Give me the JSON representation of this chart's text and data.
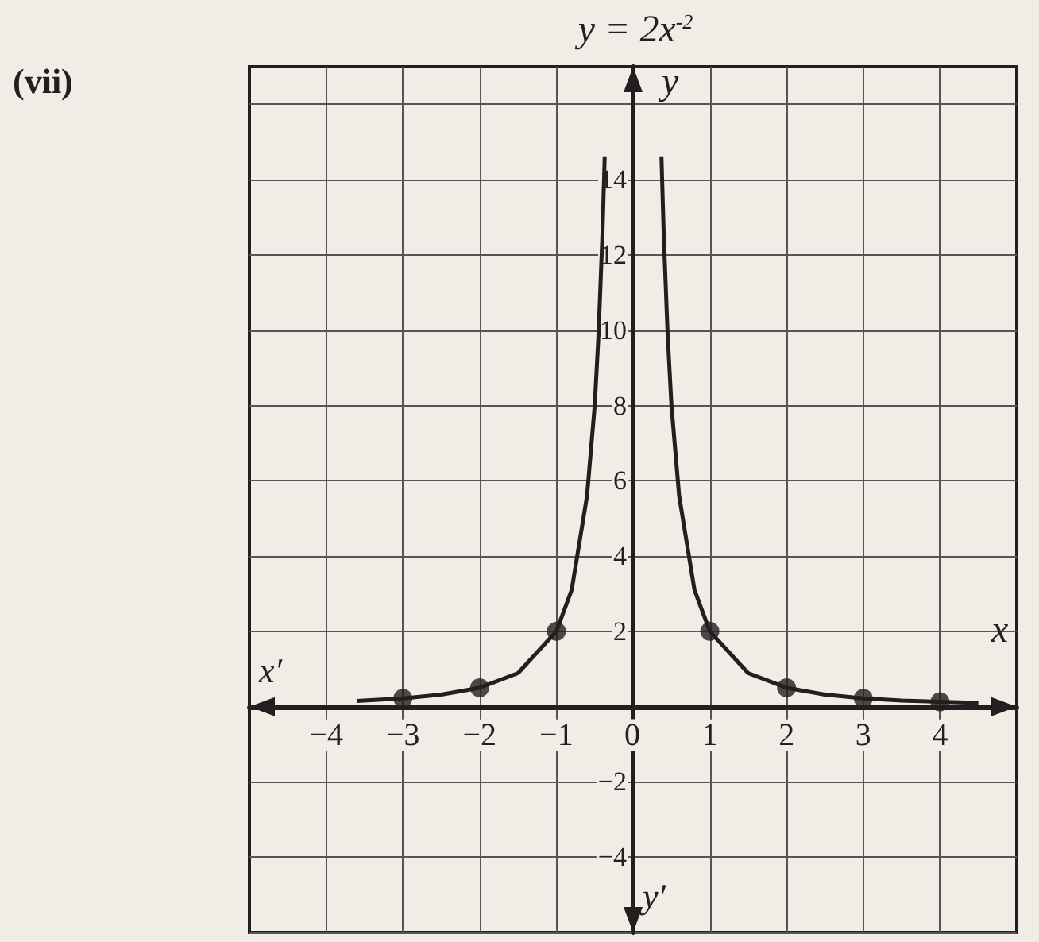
{
  "chart_data": {
    "type": "line",
    "title": "y = 2x$^{-2}$",
    "xlabel": "x",
    "ylabel": "y",
    "annotations": [
      "(vii)",
      "x′",
      "y′"
    ],
    "series": [
      {
        "type": "line",
        "color": "#231f20",
        "marker": "none",
        "x": [
          -3.6,
          -3,
          -2.5,
          -2,
          -1.5,
          -1,
          -0.8,
          -0.6,
          -0.5,
          -0.45,
          -0.4,
          -0.37,
          0,
          0.37,
          0.4,
          0.45,
          0.5,
          0.6,
          0.8,
          1,
          1.5,
          2,
          2.5,
          3,
          3.5,
          4,
          4.5
        ],
        "values": [
          0.15,
          0.22,
          0.32,
          0.5,
          0.89,
          2,
          3.1,
          5.6,
          8,
          9.9,
          12.5,
          14.6,
          null,
          14.6,
          12.5,
          9.9,
          8,
          5.6,
          3.1,
          2,
          0.89,
          0.5,
          0.32,
          0.22,
          0.16,
          0.13,
          0.1
        ]
      },
      {
        "type": "scatter",
        "color": "#231f20",
        "marker": "circle",
        "x": [
          -3,
          -2,
          -1,
          1,
          2,
          3,
          4
        ],
        "values": [
          0.22,
          0.5,
          2,
          2,
          0.5,
          0.22,
          0.13
        ]
      }
    ],
    "xlim": [
      -5,
      5
    ],
    "xticks": [
      -4,
      -3,
      -2,
      -1,
      0,
      1,
      2,
      3,
      4
    ],
    "ylim": [
      -6,
      17
    ],
    "yticks": [
      {
        "value": -6,
        "label": null
      },
      -4,
      -2,
      {
        "value": 0,
        "label": null
      },
      2,
      4,
      6,
      8,
      10,
      12,
      14,
      {
        "value": 16,
        "label": null
      }
    ],
    "grid": true
  }
}
